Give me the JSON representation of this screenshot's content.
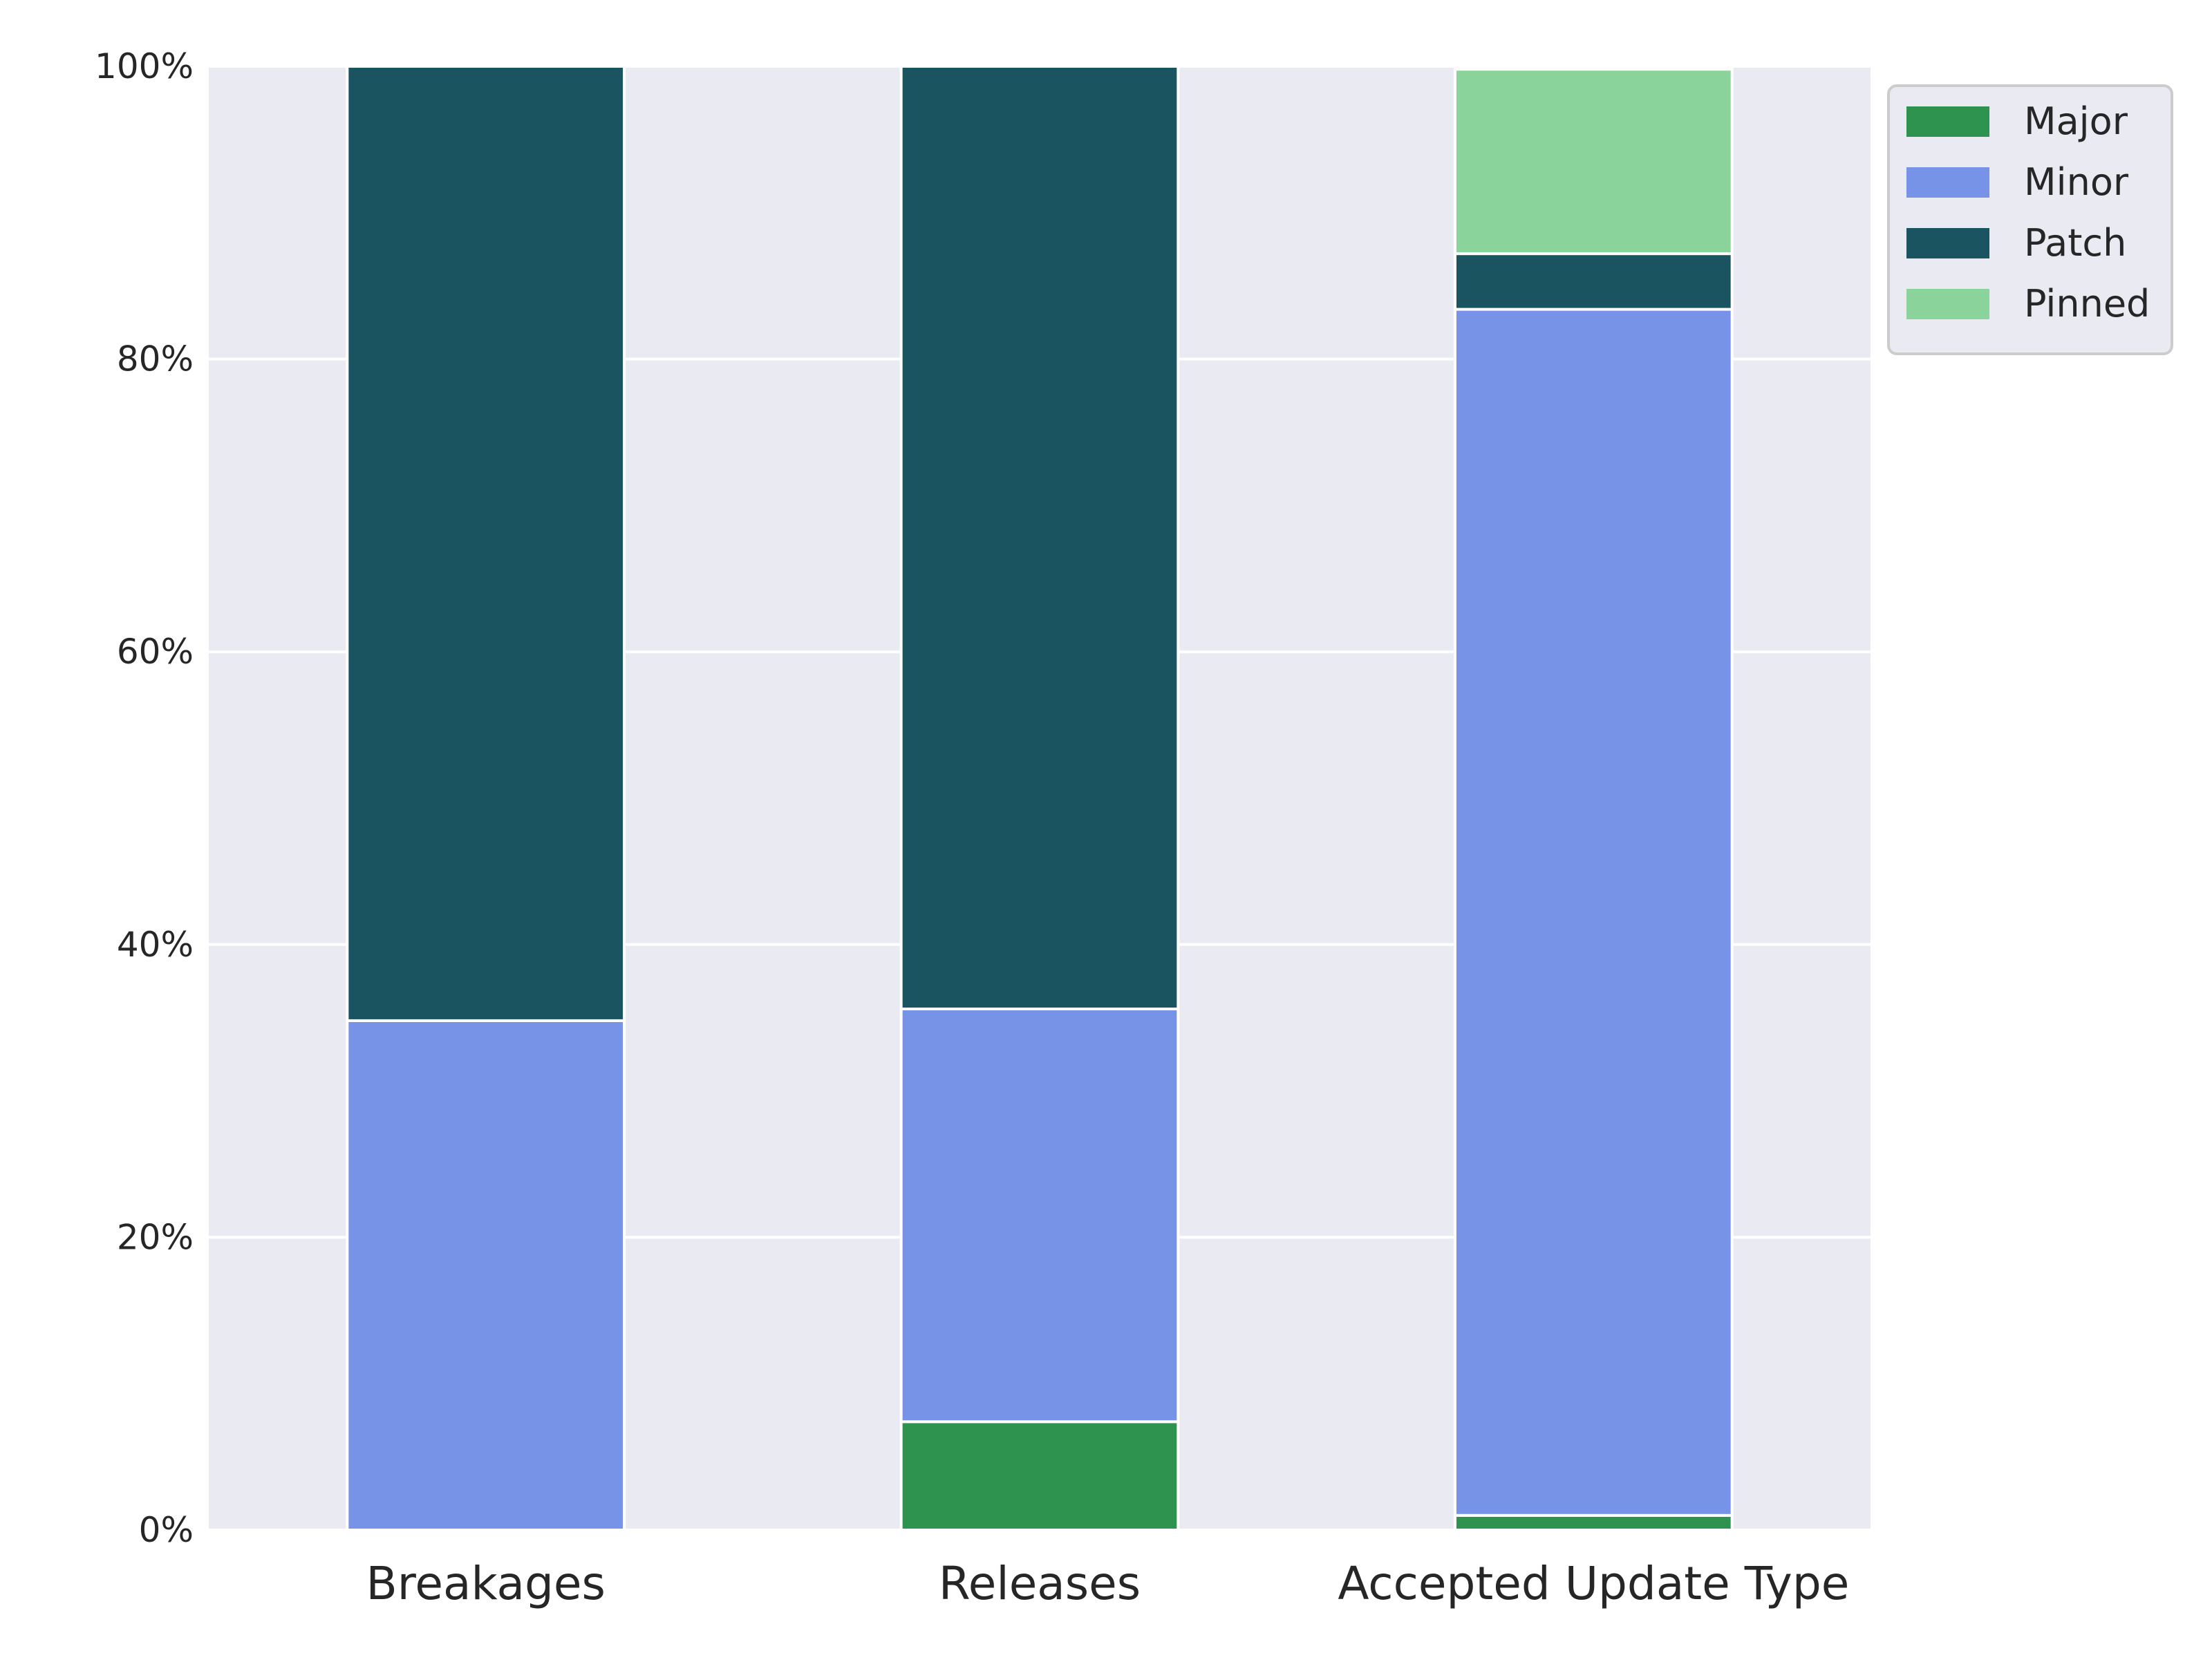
{
  "chart_data": {
    "type": "bar",
    "stacked": true,
    "categories": [
      "Breakages",
      "Releases",
      "Accepted Update Type"
    ],
    "series": [
      {
        "name": "Major",
        "color": "#2e934e",
        "values": [
          0.0,
          7.4,
          1.0
        ]
      },
      {
        "name": "Minor",
        "color": "#7793e8",
        "values": [
          34.8,
          28.2,
          82.4
        ]
      },
      {
        "name": "Patch",
        "color": "#1b5461",
        "values": [
          65.2,
          64.4,
          3.8
        ]
      },
      {
        "name": "Pinned",
        "color": "#8ad49b",
        "values": [
          0.0,
          0.0,
          12.6
        ]
      }
    ],
    "yticks": [
      "0%",
      "20%",
      "40%",
      "60%",
      "80%",
      "100%"
    ],
    "ylim": [
      0,
      100
    ],
    "title": "",
    "xlabel": "",
    "ylabel": "",
    "grid": true,
    "legend_position": "upper-right-outside",
    "colors": {
      "plot_background": "#eaeaf2",
      "grid": "#ffffff",
      "bar_edge": "#ffffff"
    }
  }
}
